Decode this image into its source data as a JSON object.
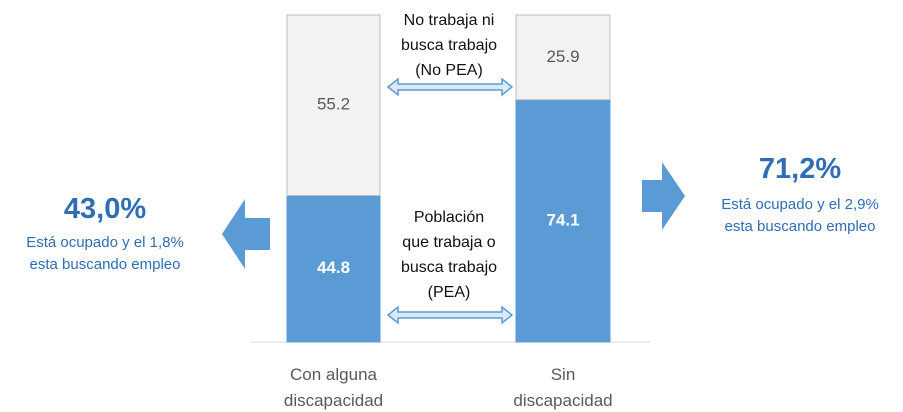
{
  "chart_data": {
    "type": "stacked_bar",
    "categories": [
      "Con alguna discapacidad",
      "Sin discapacidad"
    ],
    "series": [
      {
        "name": "Población que trabaja o busca trabajo (PEA)",
        "color": "#5b9bd5",
        "values": [
          44.8,
          74.1
        ]
      },
      {
        "name": "No trabaja ni busca trabajo (No PEA)",
        "color": "#f2f2f2",
        "values": [
          55.2,
          25.9
        ]
      }
    ],
    "ylim": [
      0,
      100
    ],
    "annotations": [
      {
        "value": "43,0%",
        "text": "Está ocupado y el 1,8% esta buscando empleo"
      },
      {
        "value": "71,2%",
        "text": "Está ocupado y el 2,9% esta buscando empleo"
      }
    ]
  }
}
